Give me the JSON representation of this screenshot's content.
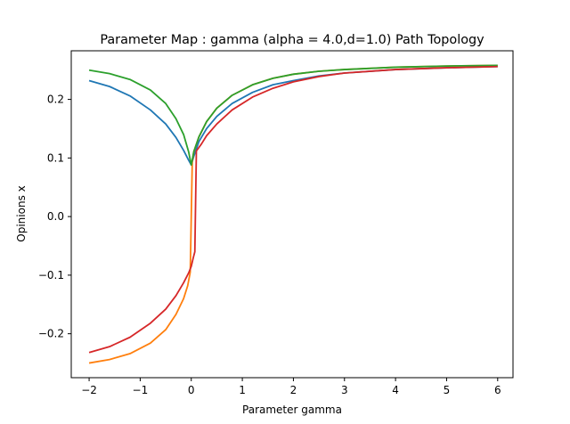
{
  "chart_data": {
    "type": "line",
    "title": "Parameter Map : gamma (alpha = 4.0,d=1.0) Path Topology",
    "xlabel": "Parameter gamma",
    "ylabel": "Opinions x",
    "xlim": [
      -2.35,
      6.3
    ],
    "ylim": [
      -0.275,
      0.283
    ],
    "xticks": [
      -2,
      -1,
      0,
      1,
      2,
      3,
      4,
      5,
      6
    ],
    "xtick_labels": [
      "−2",
      "−1",
      "0",
      "1",
      "2",
      "3",
      "4",
      "5",
      "6"
    ],
    "yticks": [
      -0.2,
      -0.1,
      0.0,
      0.1,
      0.2
    ],
    "ytick_labels": [
      "−0.2",
      "−0.1",
      "0.0",
      "0.1",
      "0.2"
    ],
    "grid": false,
    "legend": false,
    "series": [
      {
        "color": "#1f77b4",
        "x": [
          -2.0,
          -1.6,
          -1.2,
          -0.8,
          -0.5,
          -0.3,
          -0.15,
          -0.05,
          0.0,
          0.05,
          0.15,
          0.3,
          0.5,
          0.8,
          1.2,
          1.6,
          2.0,
          2.5,
          3.0,
          4.0,
          5.0,
          6.0
        ],
        "y": [
          0.232,
          0.222,
          0.206,
          0.182,
          0.158,
          0.135,
          0.113,
          0.096,
          0.088,
          0.103,
          0.128,
          0.15,
          0.171,
          0.193,
          0.212,
          0.225,
          0.232,
          0.24,
          0.245,
          0.251,
          0.254,
          0.256
        ]
      },
      {
        "color": "#ff7f0e",
        "x": [
          -2.0,
          -1.6,
          -1.2,
          -0.8,
          -0.5,
          -0.3,
          -0.15,
          -0.07,
          -0.02,
          0.0,
          0.02,
          0.05,
          0.15,
          0.3,
          0.5,
          0.8,
          1.2,
          1.6,
          2.0,
          2.5,
          3.0,
          4.0,
          5.0,
          6.0
        ],
        "y": [
          -0.25,
          -0.244,
          -0.234,
          -0.216,
          -0.193,
          -0.167,
          -0.14,
          -0.118,
          -0.095,
          0.0,
          0.095,
          0.111,
          0.136,
          0.162,
          0.185,
          0.207,
          0.225,
          0.236,
          0.243,
          0.248,
          0.251,
          0.255,
          0.257,
          0.258
        ]
      },
      {
        "color": "#2ca02c",
        "x": [
          -2.0,
          -1.6,
          -1.2,
          -0.8,
          -0.5,
          -0.3,
          -0.15,
          -0.05,
          0.0,
          0.05,
          0.15,
          0.3,
          0.5,
          0.8,
          1.2,
          1.6,
          2.0,
          2.5,
          3.0,
          4.0,
          5.0,
          6.0
        ],
        "y": [
          0.25,
          0.244,
          0.234,
          0.216,
          0.193,
          0.167,
          0.14,
          0.11,
          0.088,
          0.111,
          0.136,
          0.162,
          0.185,
          0.207,
          0.225,
          0.236,
          0.243,
          0.248,
          0.251,
          0.255,
          0.257,
          0.258
        ]
      },
      {
        "color": "#d62728",
        "x": [
          -2.0,
          -1.6,
          -1.2,
          -0.8,
          -0.5,
          -0.3,
          -0.15,
          -0.05,
          0.0,
          0.04,
          0.07,
          0.1,
          0.2,
          0.3,
          0.5,
          0.8,
          1.2,
          1.6,
          2.0,
          2.5,
          3.0,
          4.0,
          5.0,
          6.0
        ],
        "y": [
          -0.232,
          -0.222,
          -0.206,
          -0.182,
          -0.158,
          -0.135,
          -0.113,
          -0.096,
          -0.085,
          -0.07,
          -0.06,
          0.112,
          0.124,
          0.138,
          0.158,
          0.182,
          0.204,
          0.219,
          0.23,
          0.239,
          0.245,
          0.251,
          0.254,
          0.256
        ]
      }
    ]
  }
}
